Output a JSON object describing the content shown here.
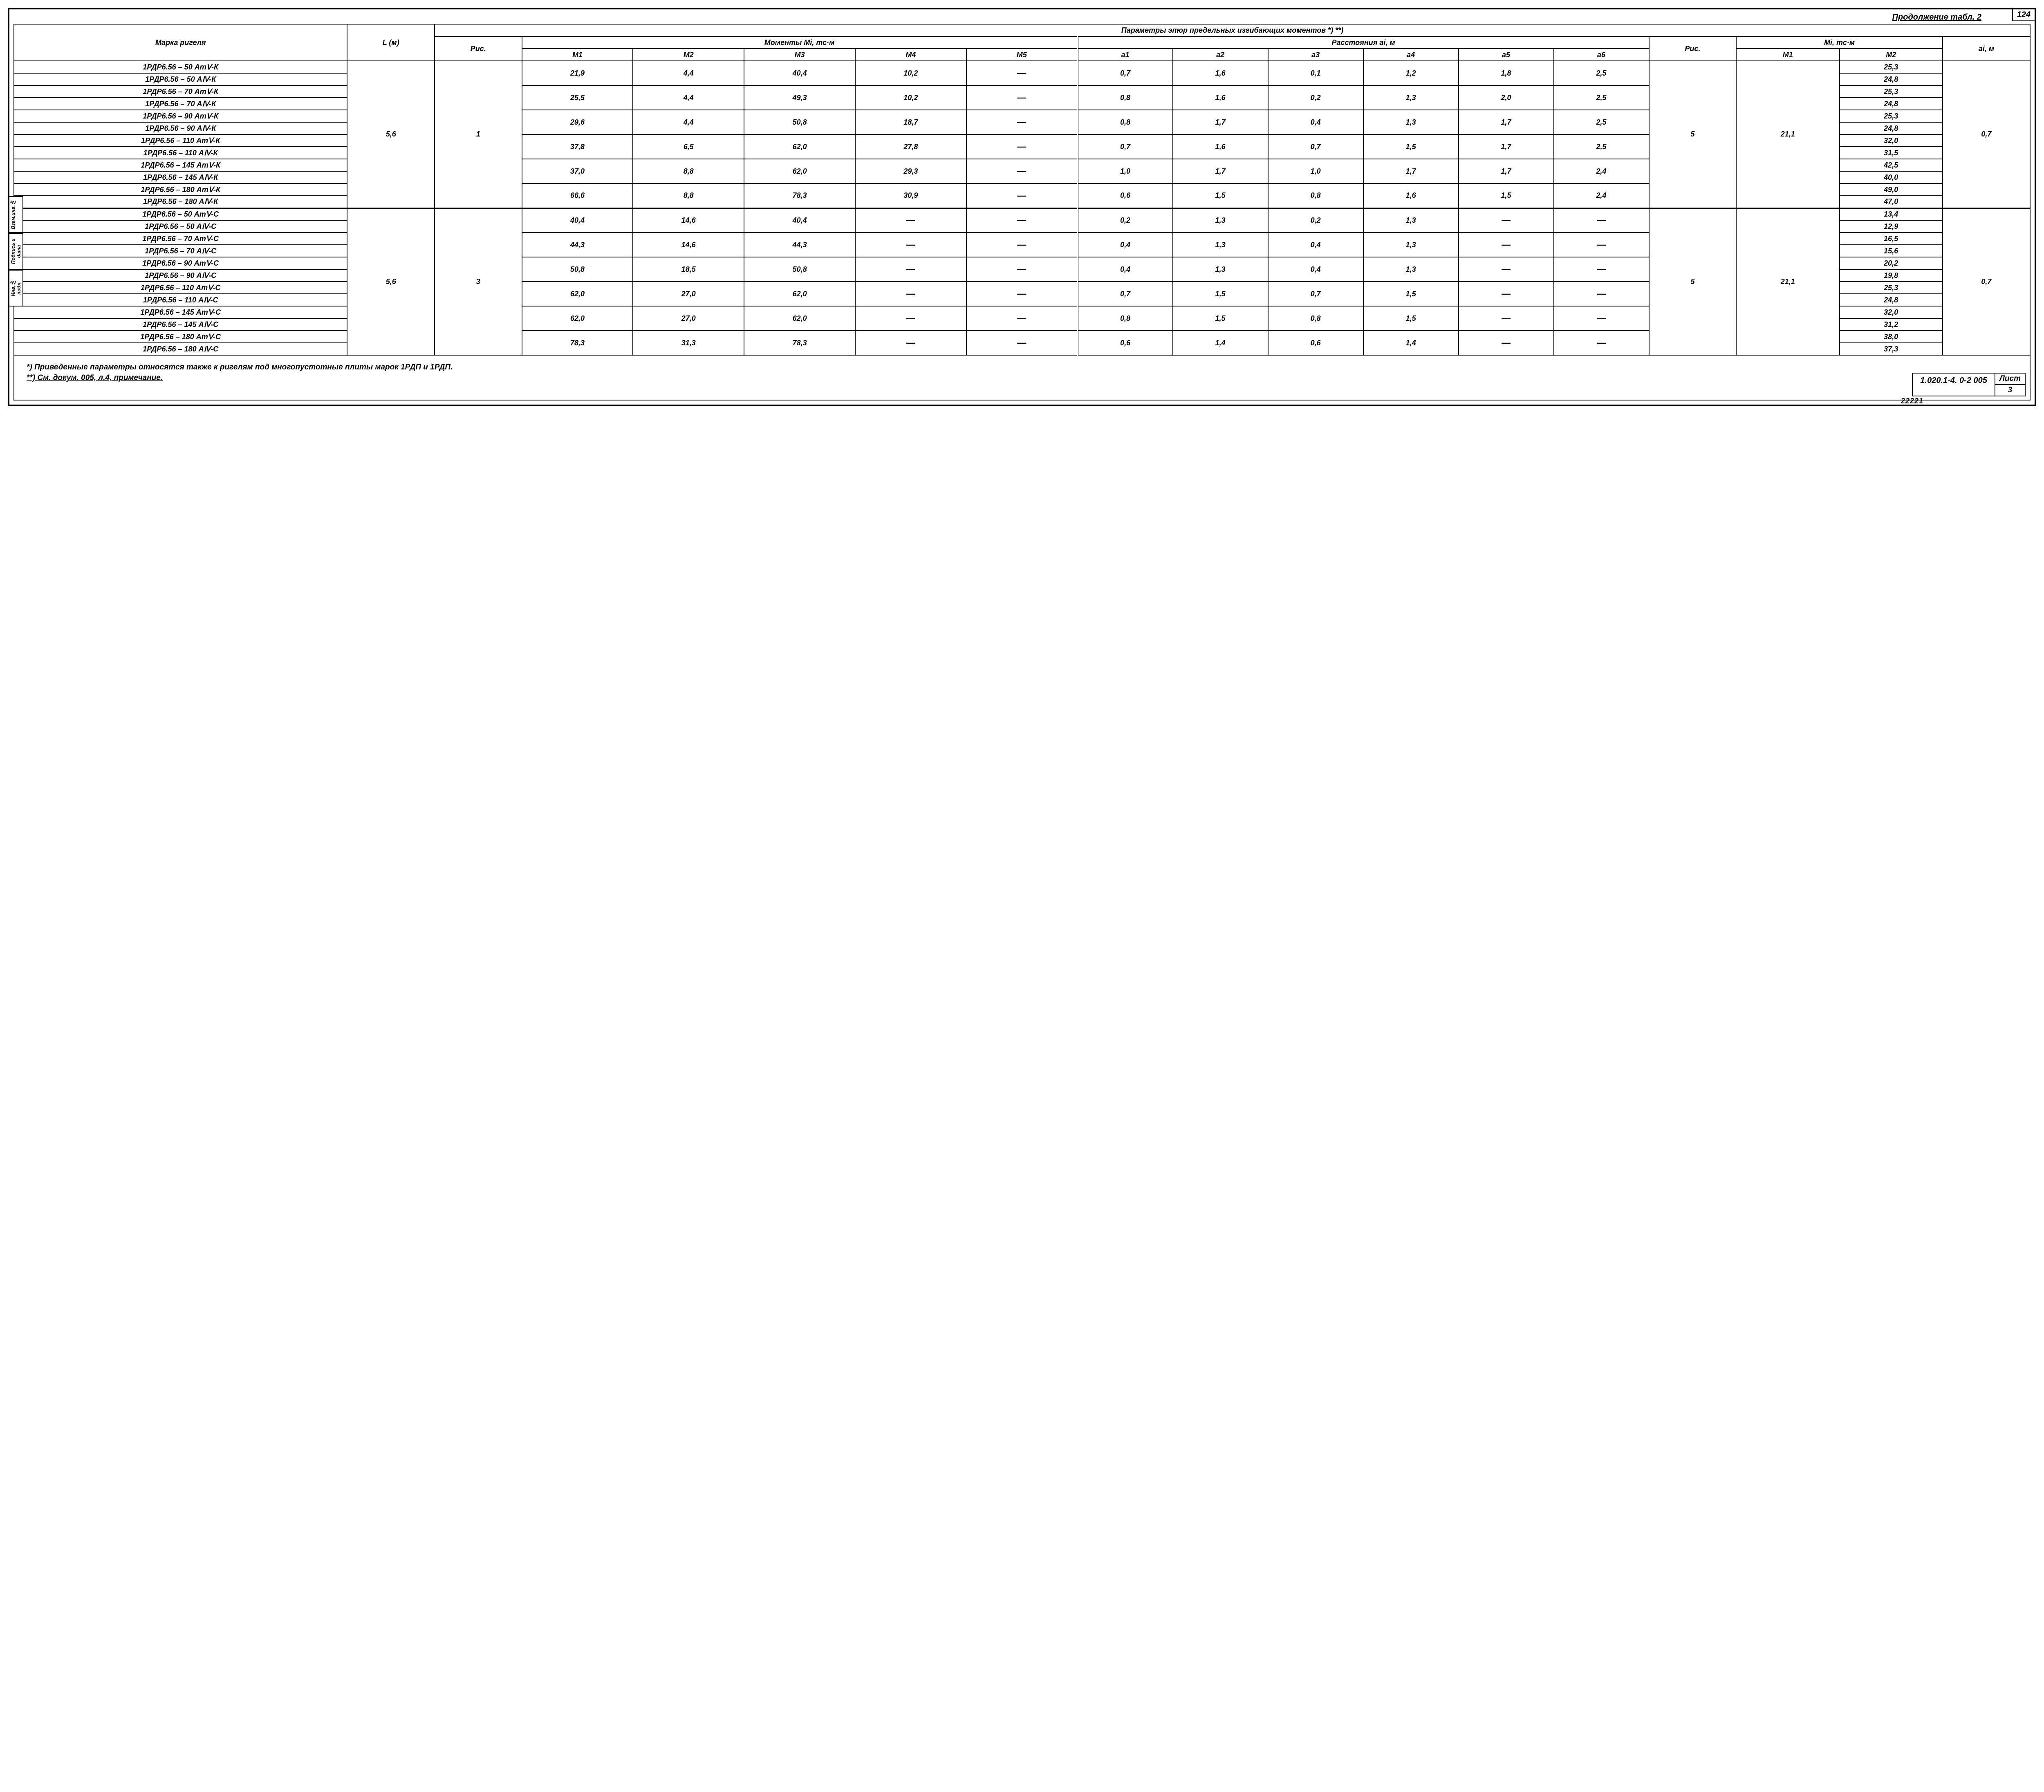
{
  "page_number": "124",
  "continuation": "Продолжение табл. 2",
  "headers": {
    "marka": "Марка ригеля",
    "L": "L (м)",
    "params": "Параметры эпюр   предельных      изгибающих   моментов *) **)",
    "ris": "Рис.",
    "moments": "Моменты  Mi,  тс·м",
    "dist": "Расстояния  ai,  м",
    "mi2": "Mi, тс·м",
    "ai2": "ai, м",
    "M": [
      "M1",
      "M2",
      "M3",
      "M4",
      "M5"
    ],
    "a": [
      "a1",
      "a2",
      "a3",
      "a4",
      "a5",
      "a6"
    ],
    "M2cols": [
      "M1",
      "M2"
    ]
  },
  "blocks": [
    {
      "L": "5,6",
      "ris": "1",
      "ris2": "5",
      "mi1_2": "21,1",
      "ai2": "0,7",
      "rows": [
        {
          "name": "1РДР6.56 – 50 АтⅤ-К",
          "m2": "25,3"
        },
        {
          "name": "1РДР6.56 – 50 АⅣ-К",
          "m2": "24,8"
        },
        {
          "name": "1РДР6.56 – 70 АтⅤ-К",
          "m2": "25,3"
        },
        {
          "name": "1РДР6.56 – 70 АⅣ-К",
          "m2": "24,8"
        },
        {
          "name": "1РДР6.56 – 90 АтⅤ-К",
          "m2": "25,3"
        },
        {
          "name": "1РДР6.56 – 90 АⅣ-К",
          "m2": "24,8"
        },
        {
          "name": "1РДР6.56 – 110 АтⅤ-К",
          "m2": "32,0"
        },
        {
          "name": "1РДР6.56 – 110 АⅣ-К",
          "m2": "31,5"
        },
        {
          "name": "1РДР6.56 – 145 АтⅤ-К",
          "m2": "42,5"
        },
        {
          "name": "1РДР6.56 – 145 АⅣ-К",
          "m2": "40,0"
        },
        {
          "name": "1РДР6.56 – 180 АтⅤ-К",
          "m2": "49,0"
        },
        {
          "name": "1РДР6.56 – 180 АⅣ-К",
          "m2": "47,0"
        }
      ],
      "pairs": [
        {
          "M": [
            "21,9",
            "4,4",
            "40,4",
            "10,2",
            "—"
          ],
          "a": [
            "0,7",
            "1,6",
            "0,1",
            "1,2",
            "1,8",
            "2,5"
          ]
        },
        {
          "M": [
            "25,5",
            "4,4",
            "49,3",
            "10,2",
            "—"
          ],
          "a": [
            "0,8",
            "1,6",
            "0,2",
            "1,3",
            "2,0",
            "2,5"
          ]
        },
        {
          "M": [
            "29,6",
            "4,4",
            "50,8",
            "18,7",
            "—"
          ],
          "a": [
            "0,8",
            "1,7",
            "0,4",
            "1,3",
            "1,7",
            "2,5"
          ]
        },
        {
          "M": [
            "37,8",
            "6,5",
            "62,0",
            "27,8",
            "—"
          ],
          "a": [
            "0,7",
            "1,6",
            "0,7",
            "1,5",
            "1,7",
            "2,5"
          ]
        },
        {
          "M": [
            "37,0",
            "8,8",
            "62,0",
            "29,3",
            "—"
          ],
          "a": [
            "1,0",
            "1,7",
            "1,0",
            "1,7",
            "1,7",
            "2,4"
          ]
        },
        {
          "M": [
            "66,6",
            "8,8",
            "78,3",
            "30,9",
            "—"
          ],
          "a": [
            "0,6",
            "1,5",
            "0,8",
            "1,6",
            "1,5",
            "2,4"
          ]
        }
      ]
    },
    {
      "L": "5,6",
      "ris": "3",
      "ris2": "5",
      "mi1_2": "21,1",
      "ai2": "0,7",
      "rows": [
        {
          "name": "1РДР6.56 – 50 АтⅤ-С",
          "m2": "13,4"
        },
        {
          "name": "1РДР6.56 – 50 АⅣ-С",
          "m2": "12,9"
        },
        {
          "name": "1РДР6.56 – 70 АтⅤ-С",
          "m2": "16,5"
        },
        {
          "name": "1РДР6.56 – 70 АⅣ-С",
          "m2": "15,6"
        },
        {
          "name": "1РДР6.56 – 90 АтⅤ-С",
          "m2": "20,2"
        },
        {
          "name": "1РДР6.56 – 90 АⅣ-С",
          "m2": "19,8"
        },
        {
          "name": "1РДР6.56 – 110 АтⅤ-С",
          "m2": "25,3"
        },
        {
          "name": "1РДР6.56 – 110 АⅣ-С",
          "m2": "24,8"
        },
        {
          "name": "1РДР6.56 – 145 АтⅤ-С",
          "m2": "32,0"
        },
        {
          "name": "1РДР6.56 – 145 АⅣ-С",
          "m2": "31,2"
        },
        {
          "name": "1РДР6.56 – 180 АтⅤ-С",
          "m2": "38,0"
        },
        {
          "name": "1РДР6.56 – 180 АⅣ-С",
          "m2": "37,3"
        }
      ],
      "pairs": [
        {
          "M": [
            "40,4",
            "14,6",
            "40,4",
            "—",
            "—"
          ],
          "a": [
            "0,2",
            "1,3",
            "0,2",
            "1,3",
            "—",
            "—"
          ]
        },
        {
          "M": [
            "44,3",
            "14,6",
            "44,3",
            "—",
            "—"
          ],
          "a": [
            "0,4",
            "1,3",
            "0,4",
            "1,3",
            "—",
            "—"
          ]
        },
        {
          "M": [
            "50,8",
            "18,5",
            "50,8",
            "—",
            "—"
          ],
          "a": [
            "0,4",
            "1,3",
            "0,4",
            "1,3",
            "—",
            "—"
          ]
        },
        {
          "M": [
            "62,0",
            "27,0",
            "62,0",
            "—",
            "—"
          ],
          "a": [
            "0,7",
            "1,5",
            "0,7",
            "1,5",
            "—",
            "—"
          ]
        },
        {
          "M": [
            "62,0",
            "27,0",
            "62,0",
            "—",
            "—"
          ],
          "a": [
            "0,8",
            "1,5",
            "0,8",
            "1,5",
            "—",
            "—"
          ]
        },
        {
          "M": [
            "78,3",
            "31,3",
            "78,3",
            "—",
            "—"
          ],
          "a": [
            "0,6",
            "1,4",
            "0,6",
            "1,4",
            "—",
            "—"
          ]
        }
      ]
    }
  ],
  "footnotes": {
    "f1": "*) Приведенные параметры относятся также к ригелям под многопустотные плиты марок 1РДП и 1РДП.",
    "f2": "**) См. докум. 005, л.4, примечание."
  },
  "titleblock": {
    "code": "1.020.1-4.  0-2   005",
    "list_label": "Лист",
    "list_num": "3"
  },
  "doc_bottom": "22221",
  "sidetabs": [
    "Инв.№ подл.",
    "Подпись и дата",
    "Взам.инв.№"
  ],
  "style": {
    "font_family": "Comic Sans MS",
    "font_style": "italic",
    "border_color": "#000000",
    "background": "#ffffff",
    "cell_fontsize": 18,
    "header_fontsize": 18
  }
}
